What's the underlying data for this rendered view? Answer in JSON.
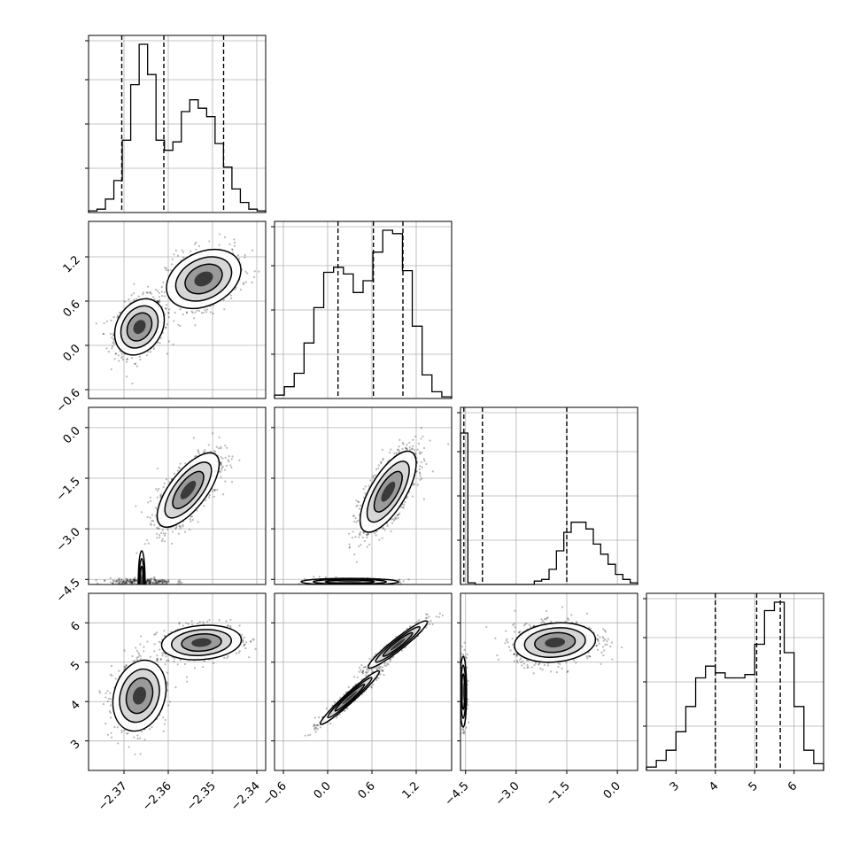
{
  "chart_data": {
    "type": "corner",
    "grid": true,
    "dims": [
      {
        "range": [
          -2.378,
          -2.338
        ],
        "ticks": [
          -2.37,
          -2.36,
          -2.35,
          -2.34
        ],
        "labels": [
          "−2.37",
          "−2.36",
          "−2.35",
          "−2.34"
        ],
        "quantiles": [
          -2.3705,
          -2.361,
          -2.3475
        ]
      },
      {
        "range": [
          -0.72,
          1.68
        ],
        "ticks": [
          -0.6,
          0.0,
          0.6,
          1.2
        ],
        "labels": [
          "−0.6",
          "0.0",
          "0.6",
          "1.2"
        ],
        "quantiles": [
          0.14,
          0.62,
          1.02
        ]
      },
      {
        "range": [
          -4.65,
          0.6
        ],
        "ticks": [
          -4.5,
          -3.0,
          -1.5,
          0.0
        ],
        "labels": [
          "−4.5",
          "−3.0",
          "−1.5",
          "0.0"
        ],
        "quantiles": [
          -4.55,
          -4.0,
          -1.5
        ]
      },
      {
        "range": [
          2.25,
          6.75
        ],
        "ticks": [
          3,
          4,
          5,
          6
        ],
        "labels": [
          "3",
          "4",
          "5",
          "6"
        ],
        "quantiles": [
          4.0,
          5.05,
          5.65
        ]
      }
    ],
    "histograms": [
      [
        0.01,
        0.02,
        0.08,
        0.19,
        0.43,
        0.76,
        1.0,
        0.82,
        0.43,
        0.37,
        0.42,
        0.6,
        0.67,
        0.62,
        0.57,
        0.41,
        0.27,
        0.14,
        0.06,
        0.02,
        0.01
      ],
      [
        0.02,
        0.07,
        0.15,
        0.33,
        0.54,
        0.75,
        0.78,
        0.74,
        0.63,
        0.7,
        0.87,
        1.0,
        0.98,
        0.76,
        0.43,
        0.14,
        0.04,
        0.01
      ],
      [
        0.9,
        0.01,
        0.0,
        0.0,
        0.0,
        0.0,
        0.0,
        0.0,
        0.0,
        0.0,
        0.02,
        0.03,
        0.09,
        0.2,
        0.31,
        0.37,
        0.37,
        0.33,
        0.24,
        0.18,
        0.12,
        0.06,
        0.03,
        0.01
      ],
      [
        0.02,
        0.06,
        0.12,
        0.23,
        0.38,
        0.55,
        0.62,
        0.58,
        0.55,
        0.55,
        0.57,
        0.75,
        0.95,
        1.0,
        0.7,
        0.38,
        0.12,
        0.04
      ]
    ],
    "clusters": [
      [
        {
          "mean": [
            -2.3665,
            0.25
          ],
          "sd": [
            0.0028,
            0.19
          ],
          "rho": 0.25,
          "w": 0.55
        },
        {
          "mean": [
            -2.352,
            0.9
          ],
          "sd": [
            0.0042,
            0.2
          ],
          "rho": 0.3,
          "w": 0.45
        }
      ],
      [
        {
          "mean": [
            -2.3555,
            -1.85
          ],
          "sd": [
            0.0035,
            0.55
          ],
          "rho": 0.7,
          "w": 0.82
        },
        {
          "mean": [
            -2.366,
            -4.57
          ],
          "sd": [
            0.0035,
            0.05
          ],
          "rho": 0.0,
          "w": 0.18
        }
      ],
      [
        {
          "mean": [
            0.82,
            -1.9
          ],
          "sd": [
            0.19,
            0.6
          ],
          "rho": 0.7,
          "w": 0.82
        },
        {
          "mean": [
            0.3,
            -4.57
          ],
          "sd": [
            0.33,
            0.05
          ],
          "rho": 0.0,
          "w": 0.18
        }
      ],
      [
        {
          "mean": [
            -2.3665,
            4.15
          ],
          "sd": [
            0.003,
            0.45
          ],
          "rho": 0.2,
          "w": 0.5
        },
        {
          "mean": [
            -2.3525,
            5.5
          ],
          "sd": [
            0.0045,
            0.22
          ],
          "rho": 0.15,
          "w": 0.5
        }
      ],
      [
        {
          "mean": [
            0.3,
            4.1
          ],
          "sd": [
            0.2,
            0.34
          ],
          "rho": 0.97,
          "w": 0.5
        },
        {
          "mean": [
            0.95,
            5.45
          ],
          "sd": [
            0.2,
            0.3
          ],
          "rho": 0.95,
          "w": 0.5
        }
      ],
      [
        {
          "mean": [
            -1.85,
            5.5
          ],
          "sd": [
            0.6,
            0.25
          ],
          "rho": 0.15,
          "w": 0.82
        },
        {
          "mean": [
            -4.57,
            4.25
          ],
          "sd": [
            0.05,
            0.45
          ],
          "rho": 0.0,
          "w": 0.18
        }
      ]
    ]
  }
}
